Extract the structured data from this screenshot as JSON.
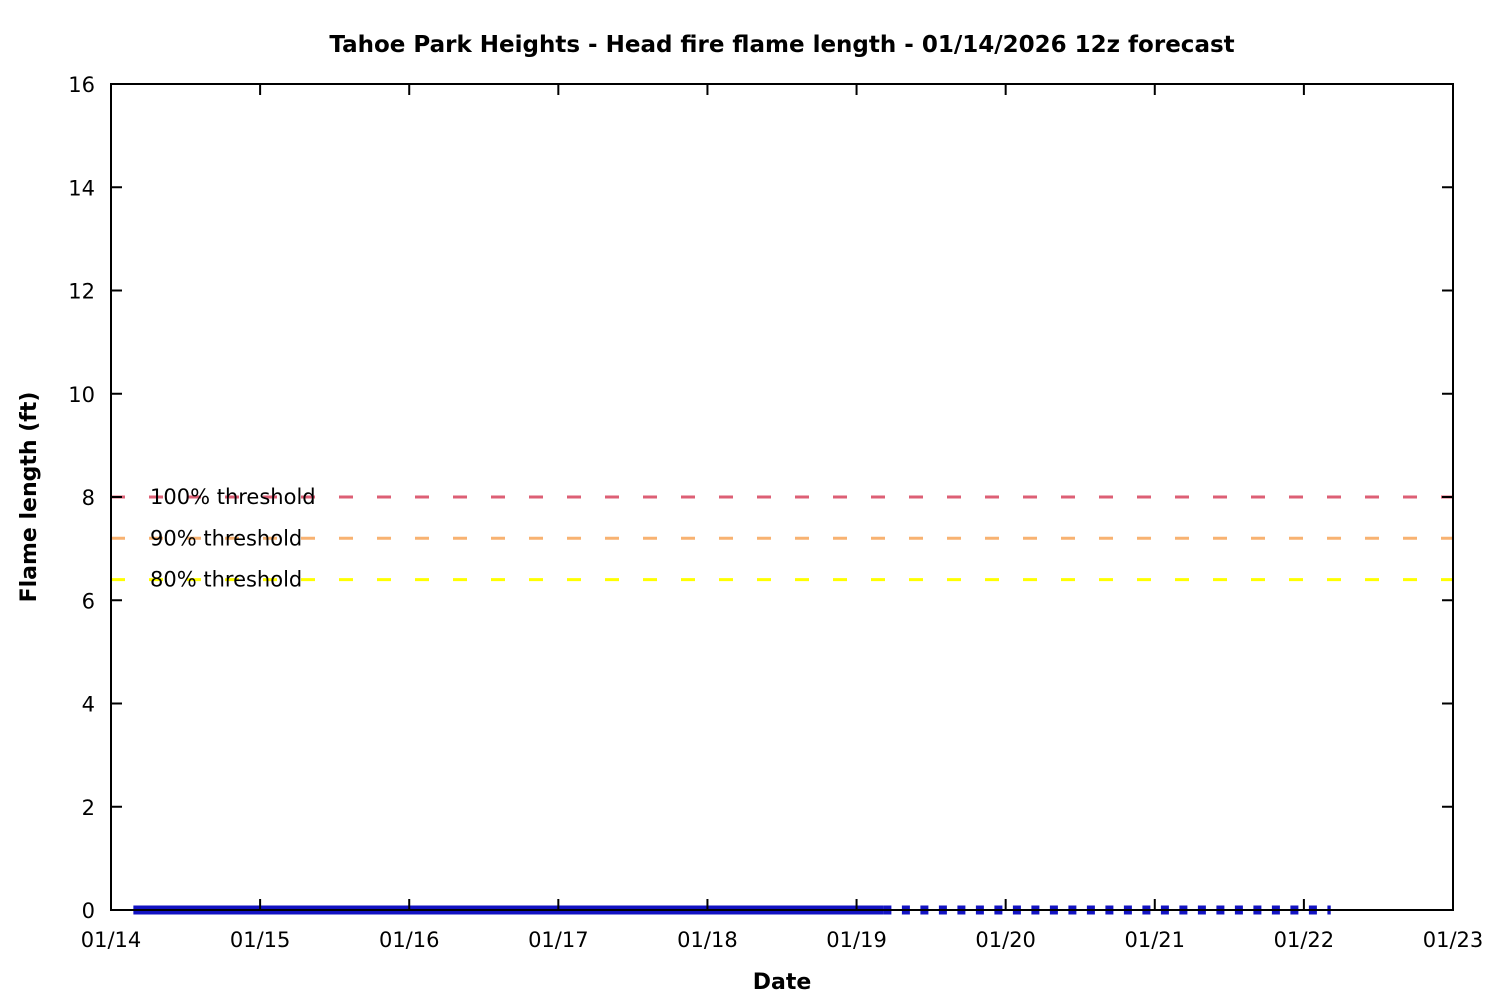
{
  "page": {
    "background": "#ffffff"
  },
  "chart_data": {
    "type": "line",
    "title": "Tahoe Park Heights - Head fire flame length - 01/14/2026 12z forecast",
    "xlabel": "Date",
    "ylabel": "Flame length (ft)",
    "x_tick_labels": [
      "01/14",
      "01/15",
      "01/16",
      "01/17",
      "01/18",
      "01/19",
      "01/20",
      "01/21",
      "01/22",
      "01/23"
    ],
    "x_range_days": [
      0,
      9
    ],
    "ylim": [
      0,
      16
    ],
    "y_ticks": [
      0,
      2,
      4,
      6,
      8,
      10,
      12,
      14,
      16
    ],
    "grid": false,
    "legend": "none",
    "axis_color": "#000000",
    "thresholds": [
      {
        "label": "100% threshold",
        "value": 8,
        "color": "#dd5f75"
      },
      {
        "label": "90% threshold",
        "value": 7.2,
        "color": "#f8b271"
      },
      {
        "label": "80% threshold",
        "value": 6.4,
        "color": "#ffff00"
      }
    ],
    "series": [
      {
        "name": "flame-length-forecast-solid",
        "style": "solid",
        "color": "#1212c2",
        "y_value": 0,
        "x_start_day": 0.15,
        "x_end_day": 5.18
      },
      {
        "name": "flame-length-forecast-dotted",
        "style": "dotted",
        "color": "#1212c2",
        "y_value": 0,
        "x_start_day": 5.18,
        "x_end_day": 8.18
      }
    ]
  }
}
